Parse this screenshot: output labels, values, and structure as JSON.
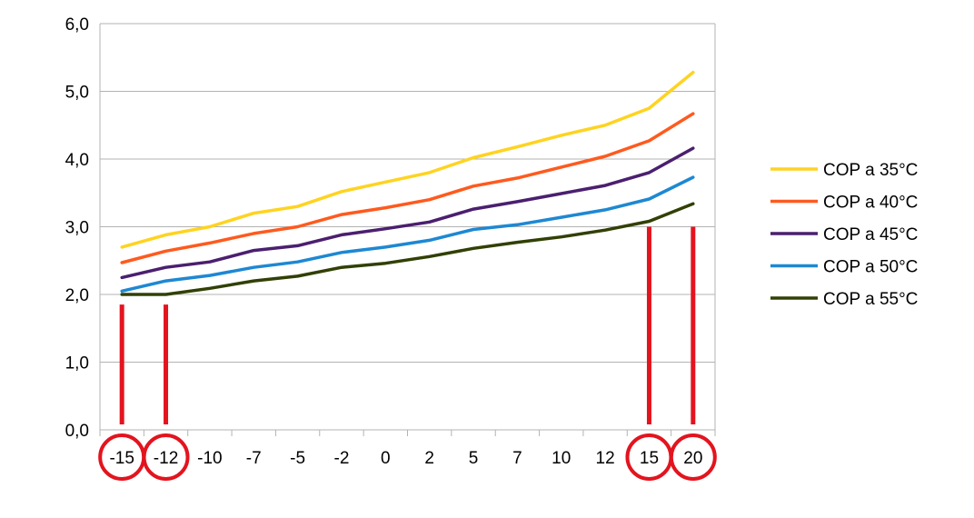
{
  "chart_data": {
    "type": "line",
    "title": "",
    "xlabel": "",
    "ylabel": "",
    "categories": [
      "-15",
      "-12",
      "-10",
      "-7",
      "-5",
      "-2",
      "0",
      "2",
      "5",
      "7",
      "10",
      "12",
      "15",
      "20"
    ],
    "ylim": [
      0,
      6
    ],
    "y_ticks": [
      "0,0",
      "1,0",
      "2,0",
      "3,0",
      "4,0",
      "5,0",
      "6,0"
    ],
    "grid": "horizontal",
    "legend_position": "right",
    "series": [
      {
        "name": "COP a 35°C",
        "color": "#FFD320",
        "values": [
          2.7,
          2.88,
          3.0,
          3.2,
          3.3,
          3.52,
          3.66,
          3.8,
          4.02,
          4.18,
          4.35,
          4.5,
          4.75,
          5.28
        ]
      },
      {
        "name": "COP a 40°C",
        "color": "#FF5A1E",
        "values": [
          2.47,
          2.64,
          2.76,
          2.9,
          3.0,
          3.18,
          3.28,
          3.4,
          3.6,
          3.72,
          3.88,
          4.04,
          4.27,
          4.67
        ]
      },
      {
        "name": "COP a 45°C",
        "color": "#4B1F6F",
        "values": [
          2.25,
          2.4,
          2.48,
          2.65,
          2.72,
          2.88,
          2.97,
          3.07,
          3.26,
          3.37,
          3.49,
          3.61,
          3.8,
          4.16
        ]
      },
      {
        "name": "COP a 50°C",
        "color": "#1E88D2",
        "values": [
          2.05,
          2.2,
          2.28,
          2.4,
          2.48,
          2.62,
          2.7,
          2.8,
          2.96,
          3.03,
          3.14,
          3.25,
          3.41,
          3.73
        ]
      },
      {
        "name": "COP a 55°C",
        "color": "#314004",
        "values": [
          2.0,
          2.0,
          2.09,
          2.2,
          2.27,
          2.4,
          2.46,
          2.56,
          2.68,
          2.77,
          2.85,
          2.95,
          3.08,
          3.34
        ]
      }
    ],
    "annotations": {
      "color": "#E3141E",
      "highlighted_categories": [
        "-15",
        "-12",
        "15",
        "20"
      ],
      "marker_lines": [
        {
          "category": "-15",
          "from": 0,
          "to": 1.85
        },
        {
          "category": "-12",
          "from": 0,
          "to": 1.85
        },
        {
          "category": "15",
          "from": 0,
          "to": 3.0
        },
        {
          "category": "20",
          "from": 0,
          "to": 3.0
        }
      ]
    }
  }
}
